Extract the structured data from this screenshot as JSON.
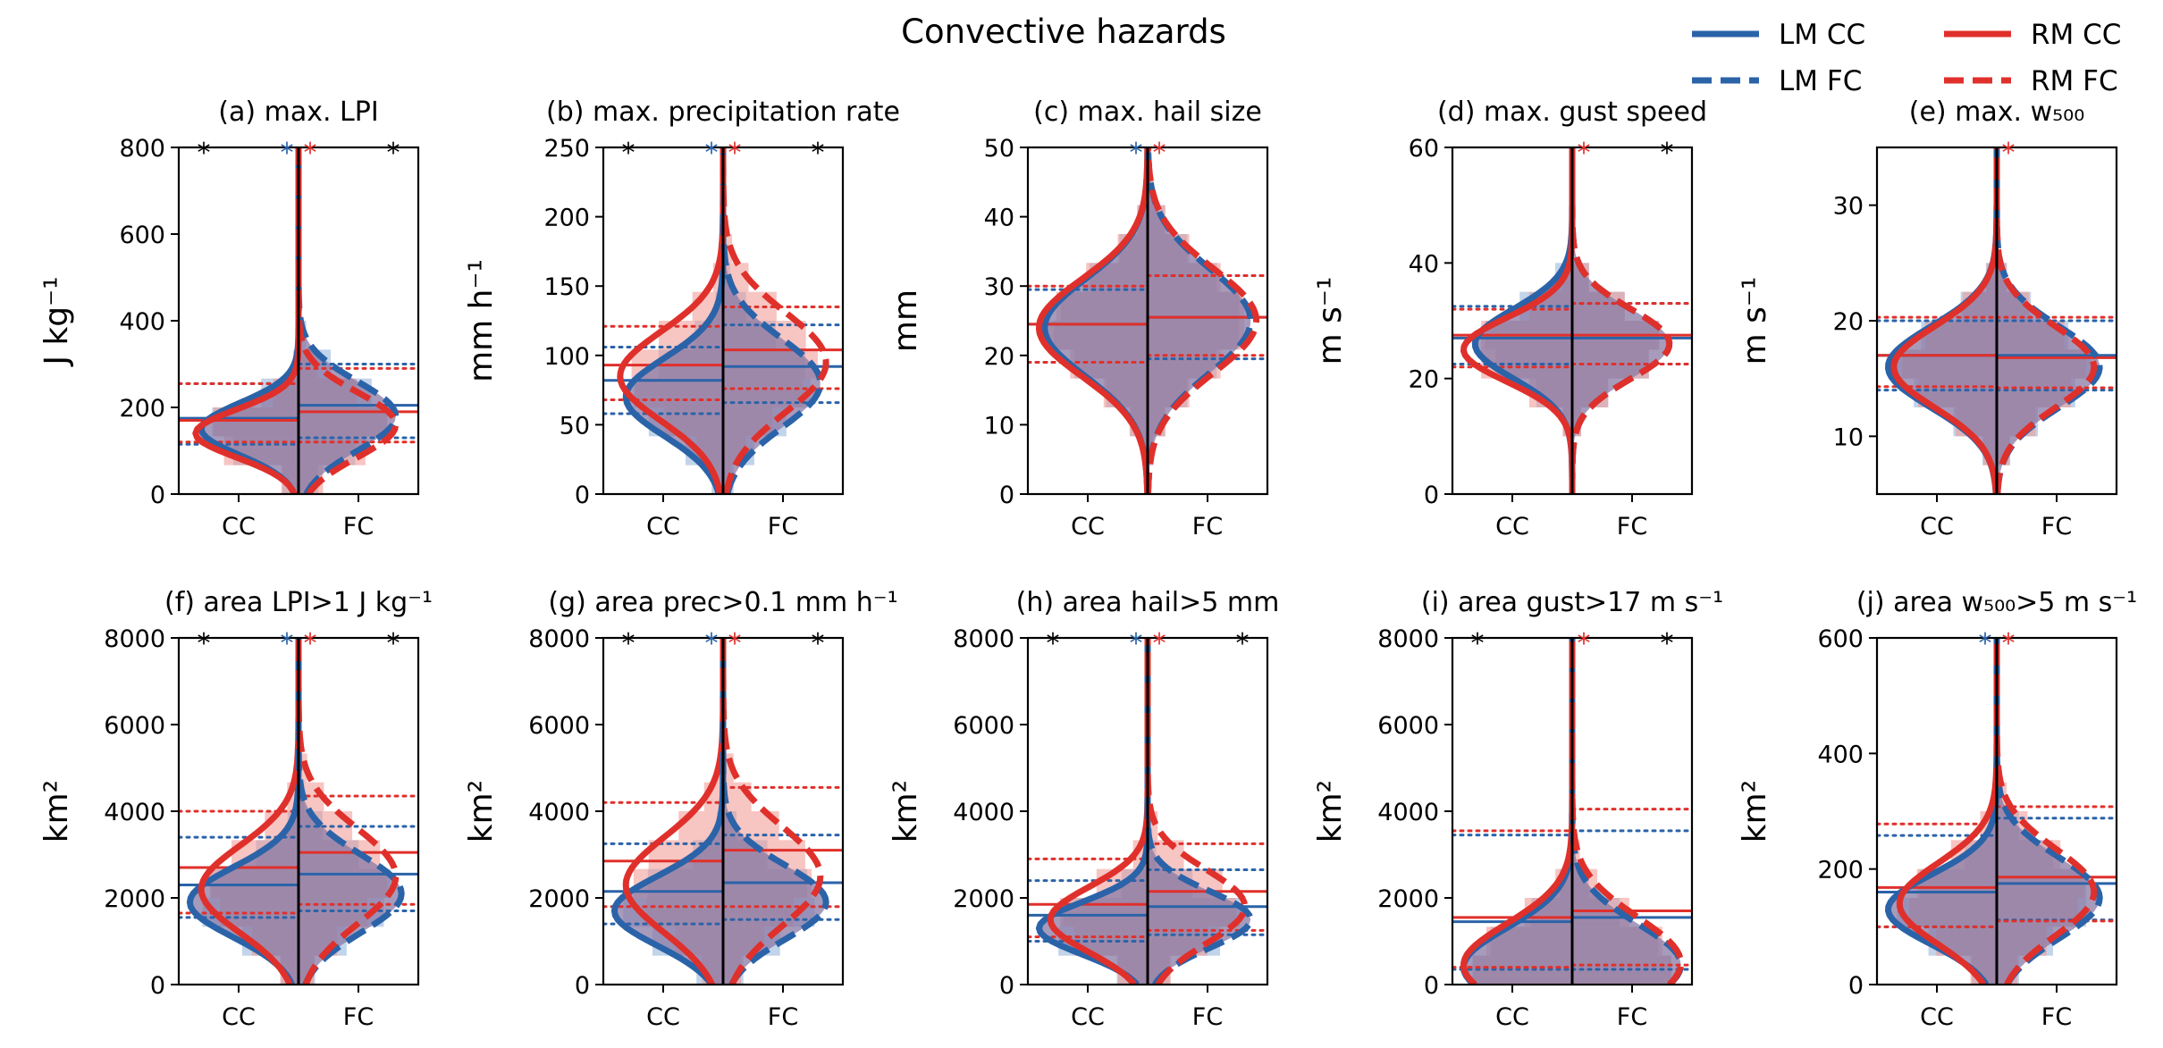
{
  "figure": {
    "suptitle": "Convective hazards",
    "colors": {
      "LM": "#2b63a8",
      "RM": "#e0302b",
      "overlap": "#8a7aa6",
      "LM_hist": "#8fb0d9",
      "RM_hist": "#f19590"
    }
  },
  "legend": {
    "placement": "top-right",
    "entries": [
      {
        "label": "LM CC",
        "style": "solid",
        "color": "#2b63a8"
      },
      {
        "label": "LM FC",
        "style": "dashed",
        "color": "#2b63a8"
      },
      {
        "label": "RM CC",
        "style": "solid",
        "color": "#e0302b"
      },
      {
        "label": "RM FC",
        "style": "dashed",
        "color": "#e0302b"
      }
    ]
  },
  "chart_data": [
    {
      "type": "violin",
      "title": "(a) max. LPI",
      "ylabel": "J kg⁻¹",
      "ylim": [
        0,
        800
      ],
      "yticks": [
        0,
        200,
        400,
        600,
        800
      ],
      "xticks": [
        "CC",
        "FC"
      ],
      "significance": [
        {
          "pos": "left",
          "color": "black"
        },
        {
          "pos": "center-left",
          "color": "blue"
        },
        {
          "pos": "center-right",
          "color": "red"
        },
        {
          "pos": "right",
          "color": "black"
        }
      ],
      "series": [
        {
          "name": "LM CC",
          "median": 175,
          "q25": 115,
          "q75": 255,
          "peak": 150,
          "width": 0.85,
          "spread": 60
        },
        {
          "name": "RM CC",
          "median": 170,
          "q25": 120,
          "q75": 255,
          "peak": 140,
          "width": 0.9,
          "spread": 55
        },
        {
          "name": "LM FC",
          "median": 205,
          "q25": 130,
          "q75": 300,
          "peak": 180,
          "width": 0.85,
          "spread": 80
        },
        {
          "name": "RM FC",
          "median": 190,
          "q25": 120,
          "q75": 290,
          "peak": 160,
          "width": 0.85,
          "spread": 75
        }
      ]
    },
    {
      "type": "violin",
      "title": "(b) max. precipitation rate",
      "ylabel": "mm h⁻¹",
      "ylim": [
        0,
        250
      ],
      "yticks": [
        0,
        50,
        100,
        150,
        200,
        250
      ],
      "xticks": [
        "CC",
        "FC"
      ],
      "significance": [
        {
          "pos": "left",
          "color": "black"
        },
        {
          "pos": "center-left",
          "color": "blue"
        },
        {
          "pos": "center-right",
          "color": "red"
        },
        {
          "pos": "right",
          "color": "black"
        }
      ],
      "series": [
        {
          "name": "LM CC",
          "median": 82,
          "q25": 58,
          "q75": 106,
          "peak": 70,
          "width": 0.85,
          "spread": 28
        },
        {
          "name": "RM CC",
          "median": 93,
          "q25": 68,
          "q75": 121,
          "peak": 85,
          "width": 0.9,
          "spread": 32
        },
        {
          "name": "LM FC",
          "median": 92,
          "q25": 66,
          "q75": 122,
          "peak": 80,
          "width": 0.85,
          "spread": 32
        },
        {
          "name": "RM FC",
          "median": 104,
          "q25": 76,
          "q75": 135,
          "peak": 95,
          "width": 0.9,
          "spread": 36
        }
      ]
    },
    {
      "type": "violin",
      "title": "(c) max. hail size",
      "ylabel": "mm",
      "ylim": [
        0,
        50
      ],
      "yticks": [
        0,
        10,
        20,
        30,
        40,
        50
      ],
      "xticks": [
        "CC",
        "FC"
      ],
      "significance": [
        {
          "pos": "center-left",
          "color": "blue"
        },
        {
          "pos": "center-right",
          "color": "red"
        }
      ],
      "series": [
        {
          "name": "LM CC",
          "median": 24.5,
          "q25": 19,
          "q75": 29.5,
          "peak": 24,
          "width": 0.9,
          "spread": 7
        },
        {
          "name": "RM CC",
          "median": 24.5,
          "q25": 19,
          "q75": 30,
          "peak": 24,
          "width": 0.95,
          "spread": 7
        },
        {
          "name": "LM FC",
          "median": 25.5,
          "q25": 19.5,
          "q75": 31.5,
          "peak": 25,
          "width": 0.9,
          "spread": 7.5
        },
        {
          "name": "RM FC",
          "median": 25.5,
          "q25": 20,
          "q75": 31.5,
          "peak": 25,
          "width": 0.95,
          "spread": 7.5
        }
      ]
    },
    {
      "type": "violin",
      "title": "(d) max. gust speed",
      "ylabel": "m s⁻¹",
      "ylim": [
        0,
        60
      ],
      "yticks": [
        0,
        20,
        40,
        60
      ],
      "xticks": [
        "CC",
        "FC"
      ],
      "significance": [
        {
          "pos": "center-right",
          "color": "red"
        },
        {
          "pos": "right",
          "color": "black"
        }
      ],
      "series": [
        {
          "name": "LM CC",
          "median": 27,
          "q25": 22.5,
          "q75": 32.5,
          "peak": 26,
          "width": 0.85,
          "spread": 6
        },
        {
          "name": "RM CC",
          "median": 27.5,
          "q25": 22,
          "q75": 32,
          "peak": 25,
          "width": 0.95,
          "spread": 5.5
        },
        {
          "name": "LM FC",
          "median": 27,
          "q25": 22.5,
          "q75": 33,
          "peak": 26,
          "width": 0.85,
          "spread": 6
        },
        {
          "name": "RM FC",
          "median": 27.5,
          "q25": 22.5,
          "q75": 33,
          "peak": 26,
          "width": 0.85,
          "spread": 6
        }
      ]
    },
    {
      "type": "violin",
      "title": "(e) max. w₅₀₀",
      "ylabel": "m s⁻¹",
      "ylim": [
        5,
        35
      ],
      "yticks": [
        10,
        20,
        30
      ],
      "xticks": [
        "CC",
        "FC"
      ],
      "significance": [
        {
          "pos": "center-right",
          "color": "red"
        }
      ],
      "series": [
        {
          "name": "LM CC",
          "median": 17,
          "q25": 14,
          "q75": 20,
          "peak": 16,
          "width": 0.95,
          "spread": 3.5
        },
        {
          "name": "RM CC",
          "median": 17,
          "q25": 14.3,
          "q75": 20.3,
          "peak": 16,
          "width": 0.9,
          "spread": 3.5
        },
        {
          "name": "LM FC",
          "median": 17,
          "q25": 14,
          "q75": 20,
          "peak": 16,
          "width": 0.9,
          "spread": 3.5
        },
        {
          "name": "RM FC",
          "median": 16.8,
          "q25": 14.2,
          "q75": 20.3,
          "peak": 16,
          "width": 0.85,
          "spread": 3.5
        }
      ]
    },
    {
      "type": "violin",
      "title": "(f) area LPI>1 J kg⁻¹",
      "ylabel": "km²",
      "ylim": [
        0,
        8000
      ],
      "yticks": [
        0,
        2000,
        4000,
        6000,
        8000
      ],
      "xticks": [
        "CC",
        "FC"
      ],
      "significance": [
        {
          "pos": "left",
          "color": "black"
        },
        {
          "pos": "center-left",
          "color": "blue"
        },
        {
          "pos": "center-right",
          "color": "red"
        },
        {
          "pos": "right",
          "color": "black"
        }
      ],
      "series": [
        {
          "name": "LM CC",
          "median": 2300,
          "q25": 1550,
          "q75": 3400,
          "peak": 1900,
          "width": 0.95,
          "spread": 800
        },
        {
          "name": "RM CC",
          "median": 2700,
          "q25": 1650,
          "q75": 4000,
          "peak": 2200,
          "width": 0.85,
          "spread": 1000
        },
        {
          "name": "LM FC",
          "median": 2550,
          "q25": 1700,
          "q75": 3650,
          "peak": 2100,
          "width": 0.9,
          "spread": 900
        },
        {
          "name": "RM FC",
          "median": 3050,
          "q25": 1850,
          "q75": 4350,
          "peak": 2500,
          "width": 0.85,
          "spread": 1100
        }
      ]
    },
    {
      "type": "violin",
      "title": "(g) area prec>0.1 mm h⁻¹",
      "ylabel": "km²",
      "ylim": [
        0,
        8000
      ],
      "yticks": [
        0,
        2000,
        4000,
        6000,
        8000
      ],
      "xticks": [
        "CC",
        "FC"
      ],
      "significance": [
        {
          "pos": "left",
          "color": "black"
        },
        {
          "pos": "center-left",
          "color": "blue"
        },
        {
          "pos": "center-right",
          "color": "red"
        },
        {
          "pos": "right",
          "color": "black"
        }
      ],
      "series": [
        {
          "name": "LM CC",
          "median": 2150,
          "q25": 1400,
          "q75": 3250,
          "peak": 1700,
          "width": 0.95,
          "spread": 800
        },
        {
          "name": "RM CC",
          "median": 2850,
          "q25": 1800,
          "q75": 4200,
          "peak": 2300,
          "width": 0.85,
          "spread": 1100
        },
        {
          "name": "LM FC",
          "median": 2350,
          "q25": 1500,
          "q75": 3450,
          "peak": 1900,
          "width": 0.9,
          "spread": 850
        },
        {
          "name": "RM FC",
          "median": 3100,
          "q25": 1800,
          "q75": 4550,
          "peak": 2500,
          "width": 0.85,
          "spread": 1150
        }
      ]
    },
    {
      "type": "violin",
      "title": "(h) area hail>5 mm",
      "ylabel": "km²",
      "ylim": [
        0,
        8000
      ],
      "yticks": [
        0,
        2000,
        4000,
        6000,
        8000
      ],
      "xticks": [
        "CC",
        "FC"
      ],
      "significance": [
        {
          "pos": "left",
          "color": "black"
        },
        {
          "pos": "center-left",
          "color": "blue"
        },
        {
          "pos": "center-right",
          "color": "red"
        },
        {
          "pos": "right",
          "color": "black"
        }
      ],
      "series": [
        {
          "name": "LM CC",
          "median": 1600,
          "q25": 1000,
          "q75": 2400,
          "peak": 1300,
          "width": 0.95,
          "spread": 600
        },
        {
          "name": "RM CC",
          "median": 1850,
          "q25": 1100,
          "q75": 2900,
          "peak": 1500,
          "width": 0.85,
          "spread": 750
        },
        {
          "name": "LM FC",
          "median": 1800,
          "q25": 1150,
          "q75": 2650,
          "peak": 1500,
          "width": 0.9,
          "spread": 650
        },
        {
          "name": "RM FC",
          "median": 2150,
          "q25": 1250,
          "q75": 3250,
          "peak": 1800,
          "width": 0.85,
          "spread": 850
        }
      ]
    },
    {
      "type": "violin",
      "title": "(i) area gust>17 m s⁻¹",
      "ylabel": "km²",
      "ylim": [
        0,
        8000
      ],
      "yticks": [
        0,
        2000,
        4000,
        6000,
        8000
      ],
      "xticks": [
        "CC",
        "FC"
      ],
      "significance": [
        {
          "pos": "left",
          "color": "black"
        },
        {
          "pos": "center-right",
          "color": "red"
        },
        {
          "pos": "right",
          "color": "black"
        }
      ],
      "series": [
        {
          "name": "LM CC",
          "median": 1450,
          "q25": 350,
          "q75": 3450,
          "peak": 400,
          "width": 0.95,
          "spread": 900
        },
        {
          "name": "RM CC",
          "median": 1550,
          "q25": 400,
          "q75": 3550,
          "peak": 450,
          "width": 0.95,
          "spread": 950
        },
        {
          "name": "LM FC",
          "median": 1550,
          "q25": 350,
          "q75": 3550,
          "peak": 450,
          "width": 0.95,
          "spread": 950
        },
        {
          "name": "RM FC",
          "median": 1700,
          "q25": 450,
          "q75": 4050,
          "peak": 500,
          "width": 0.95,
          "spread": 1050
        }
      ]
    },
    {
      "type": "violin",
      "title": "(j) area w₅₀₀>5 m s⁻¹",
      "ylabel": "km²",
      "ylim": [
        0,
        600
      ],
      "yticks": [
        0,
        200,
        400,
        600
      ],
      "xticks": [
        "CC",
        "FC"
      ],
      "significance": [
        {
          "pos": "center-left",
          "color": "blue"
        },
        {
          "pos": "center-right",
          "color": "red"
        }
      ],
      "series": [
        {
          "name": "LM CC",
          "median": 160,
          "q25": 100,
          "q75": 258,
          "peak": 130,
          "width": 0.95,
          "spread": 60
        },
        {
          "name": "RM CC",
          "median": 168,
          "q25": 100,
          "q75": 278,
          "peak": 140,
          "width": 0.85,
          "spread": 70
        },
        {
          "name": "LM FC",
          "median": 175,
          "q25": 112,
          "q75": 288,
          "peak": 150,
          "width": 0.9,
          "spread": 70
        },
        {
          "name": "RM FC",
          "median": 186,
          "q25": 110,
          "q75": 308,
          "peak": 160,
          "width": 0.85,
          "spread": 75
        }
      ]
    }
  ]
}
